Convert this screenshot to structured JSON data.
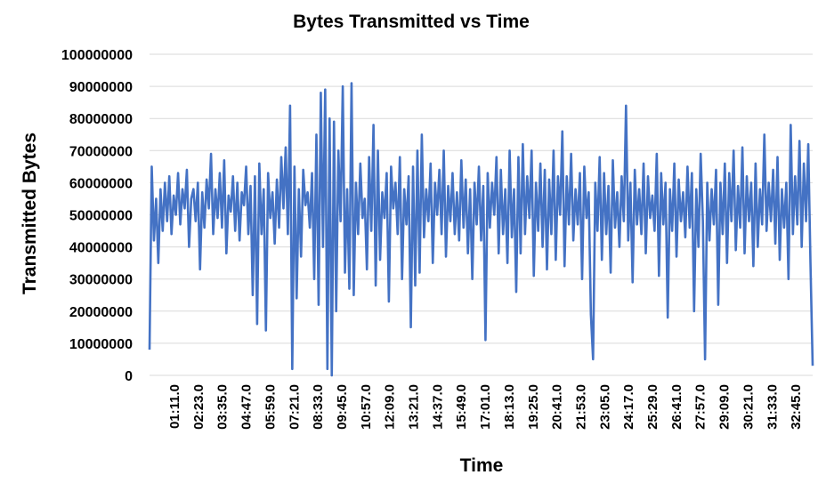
{
  "chart_data": {
    "type": "line",
    "title": "Bytes Transmitted vs Time",
    "xlabel": "Time",
    "ylabel": "Transmitted Bytes",
    "ylim": [
      0,
      100000000
    ],
    "yticks": [
      "0",
      "10000000",
      "20000000",
      "30000000",
      "40000000",
      "50000000",
      "60000000",
      "70000000",
      "80000000",
      "90000000",
      "100000000"
    ],
    "xticks": [
      "01:11.0",
      "02:23.0",
      "03:35.0",
      "04:47.0",
      "05:59.0",
      "07:21.0",
      "08:33.0",
      "09:45.0",
      "10:57.0",
      "12:09.0",
      "13:21.0",
      "14:37.0",
      "15:49.0",
      "17:01.0",
      "18:13.0",
      "19:25.0",
      "20:41.0",
      "21:53.0",
      "23:05.0",
      "24:17.0",
      "25:29.0",
      "26:41.0",
      "27:57.0",
      "29:09.0",
      "30:21.0",
      "31:33.0",
      "32:45.0"
    ],
    "grid": true,
    "legend": "none",
    "series_color": "#4472C4",
    "series": [
      {
        "values": [
          8000000,
          65000000,
          42000000,
          55000000,
          35000000,
          58000000,
          45000000,
          60000000,
          48000000,
          62000000,
          44000000,
          56000000,
          50000000,
          63000000,
          47000000,
          58000000,
          52000000,
          64000000,
          40000000,
          55000000,
          58000000,
          48000000,
          60000000,
          33000000,
          57000000,
          46000000,
          61000000,
          52000000,
          69000000,
          44000000,
          58000000,
          49000000,
          63000000,
          46000000,
          67000000,
          38000000,
          56000000,
          51000000,
          62000000,
          45000000,
          60000000,
          42000000,
          57000000,
          53000000,
          65000000,
          44000000,
          59000000,
          25000000,
          62000000,
          16000000,
          66000000,
          44000000,
          58000000,
          14000000,
          63000000,
          49000000,
          57000000,
          41000000,
          61000000,
          46000000,
          68000000,
          52000000,
          71000000,
          44000000,
          84000000,
          2000000,
          65000000,
          24000000,
          58000000,
          37000000,
          64000000,
          53000000,
          57000000,
          46000000,
          63000000,
          30000000,
          75000000,
          22000000,
          88000000,
          40000000,
          89000000,
          2000000,
          80000000,
          0,
          79000000,
          20000000,
          70000000,
          48000000,
          90000000,
          32000000,
          58000000,
          27000000,
          91000000,
          25000000,
          60000000,
          44000000,
          66000000,
          49000000,
          55000000,
          33000000,
          68000000,
          45000000,
          78000000,
          28000000,
          70000000,
          36000000,
          57000000,
          49000000,
          63000000,
          23000000,
          65000000,
          52000000,
          60000000,
          44000000,
          68000000,
          30000000,
          58000000,
          47000000,
          62000000,
          15000000,
          65000000,
          28000000,
          70000000,
          32000000,
          75000000,
          43000000,
          58000000,
          48000000,
          66000000,
          35000000,
          60000000,
          50000000,
          64000000,
          44000000,
          70000000,
          37000000,
          59000000,
          48000000,
          63000000,
          44000000,
          57000000,
          42000000,
          67000000,
          46000000,
          61000000,
          38000000,
          58000000,
          30000000,
          60000000,
          47000000,
          65000000,
          42000000,
          59000000,
          11000000,
          63000000,
          46000000,
          60000000,
          50000000,
          68000000,
          38000000,
          64000000,
          44000000,
          58000000,
          35000000,
          70000000,
          43000000,
          58000000,
          26000000,
          68000000,
          38000000,
          72000000,
          44000000,
          62000000,
          49000000,
          70000000,
          31000000,
          60000000,
          45000000,
          66000000,
          40000000,
          64000000,
          33000000,
          61000000,
          44000000,
          70000000,
          36000000,
          62000000,
          50000000,
          76000000,
          34000000,
          62000000,
          47000000,
          69000000,
          42000000,
          58000000,
          47000000,
          63000000,
          30000000,
          65000000,
          49000000,
          57000000,
          19000000,
          5000000,
          60000000,
          45000000,
          68000000,
          36000000,
          63000000,
          44000000,
          59000000,
          32000000,
          67000000,
          46000000,
          57000000,
          40000000,
          62000000,
          48000000,
          84000000,
          42000000,
          60000000,
          29000000,
          64000000,
          47000000,
          58000000,
          44000000,
          66000000,
          38000000,
          62000000,
          49000000,
          56000000,
          45000000,
          69000000,
          31000000,
          63000000,
          47000000,
          60000000,
          18000000,
          58000000,
          45000000,
          66000000,
          37000000,
          61000000,
          48000000,
          57000000,
          43000000,
          65000000,
          46000000,
          63000000,
          20000000,
          58000000,
          40000000,
          69000000,
          48000000,
          5000000,
          60000000,
          42000000,
          58000000,
          47000000,
          64000000,
          22000000,
          60000000,
          44000000,
          66000000,
          35000000,
          63000000,
          48000000,
          70000000,
          39000000,
          59000000,
          46000000,
          71000000,
          38000000,
          62000000,
          48000000,
          60000000,
          34000000,
          66000000,
          40000000,
          58000000,
          47000000,
          75000000,
          45000000,
          60000000,
          48000000,
          64000000,
          41000000,
          68000000,
          36000000,
          58000000,
          46000000,
          60000000,
          30000000,
          78000000,
          44000000,
          62000000,
          47000000,
          73000000,
          40000000,
          66000000,
          48000000,
          72000000,
          35000000,
          3000000
        ]
      }
    ]
  }
}
